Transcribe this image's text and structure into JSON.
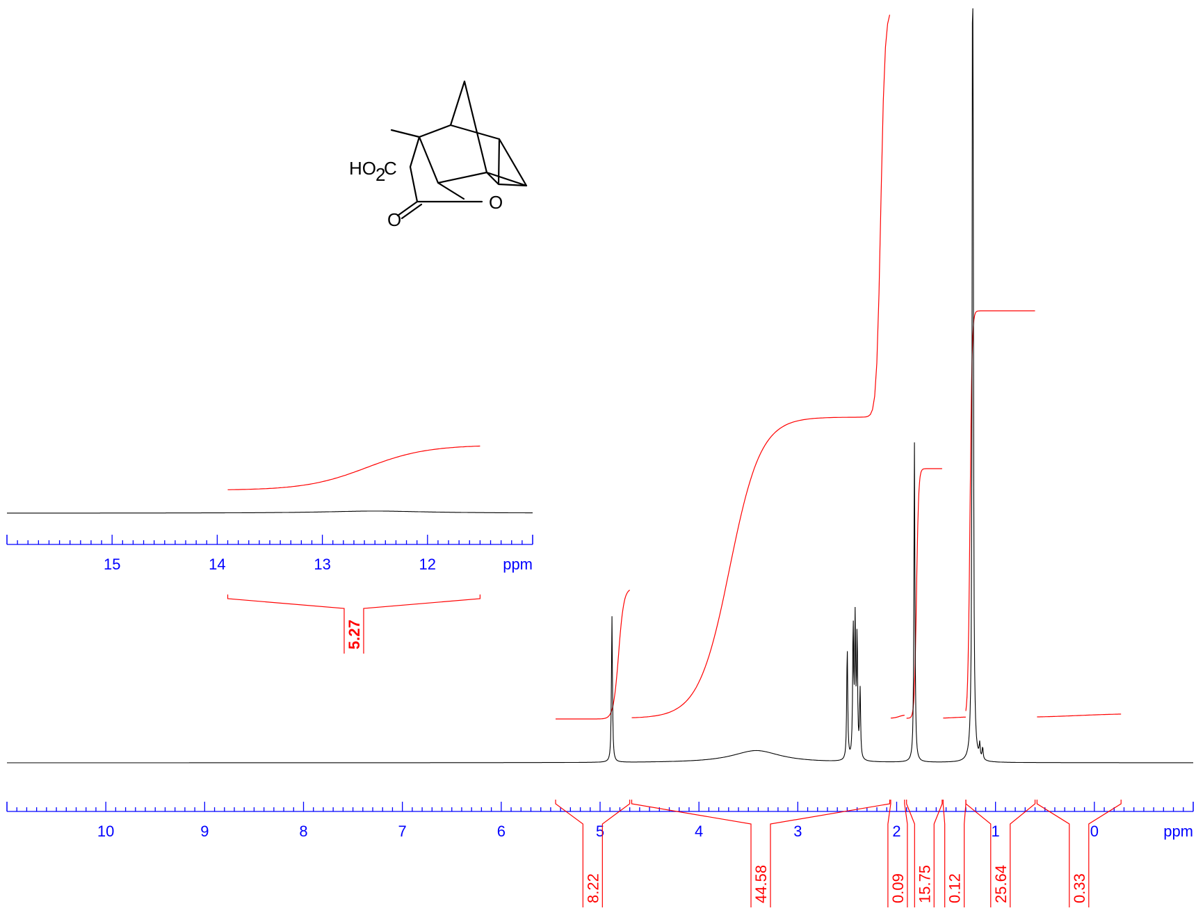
{
  "chart_data": [
    {
      "type": "line",
      "title": "",
      "xlabel": "ppm",
      "ylabel": "",
      "xlim": [
        11.0,
        -1.0
      ],
      "x_reversed": true,
      "grid": false,
      "legend": "none",
      "xticks": [
        10,
        9,
        8,
        7,
        6,
        5,
        4,
        3,
        2,
        1,
        0
      ],
      "xtick_labels": [
        "10",
        "9",
        "8",
        "7",
        "6",
        "5",
        "4",
        "3",
        "2",
        "1",
        "0"
      ],
      "peaks": [
        {
          "ppm": 4.88,
          "height": 0.42
        },
        {
          "ppm": 3.42,
          "height": 0.035,
          "width": 0.3
        },
        {
          "ppm": 2.5,
          "height": 0.33
        },
        {
          "ppm": 2.44,
          "height": 0.38
        },
        {
          "ppm": 2.42,
          "height": 0.38
        },
        {
          "ppm": 2.4,
          "height": 0.35
        },
        {
          "ppm": 2.37,
          "height": 0.2
        },
        {
          "ppm": 1.82,
          "height": 0.92
        },
        {
          "ppm": 1.23,
          "height": 3.0
        },
        {
          "ppm": 1.16,
          "height": 0.04
        },
        {
          "ppm": 1.13,
          "height": 0.035
        }
      ],
      "integrals": [
        {
          "from": 5.45,
          "to": 4.7,
          "value": "8.22"
        },
        {
          "from": 4.68,
          "to": 2.07,
          "value": "44.58"
        },
        {
          "from": 2.06,
          "to": 1.92,
          "value": "0.09"
        },
        {
          "from": 1.9,
          "to": 1.54,
          "value": "15.75"
        },
        {
          "from": 1.53,
          "to": 1.3,
          "value": "0.12"
        },
        {
          "from": 1.3,
          "to": 0.6,
          "value": "25.64"
        },
        {
          "from": 0.58,
          "to": -0.27,
          "value": "0.33"
        }
      ]
    },
    {
      "type": "line",
      "title": "",
      "xlabel": "ppm",
      "ylabel": "",
      "xlim": [
        16.0,
        11.0
      ],
      "x_reversed": true,
      "grid": false,
      "legend": "none",
      "xticks": [
        15,
        14,
        13,
        12
      ],
      "xtick_labels": [
        "15",
        "14",
        "13",
        "12"
      ],
      "peaks": [
        {
          "ppm": 12.5,
          "height": 0.015,
          "width": 0.6
        }
      ],
      "integrals": [
        {
          "from": 13.9,
          "to": 11.5,
          "value": "5.27",
          "bold": true
        }
      ]
    }
  ],
  "structure": {
    "label_ho2c": "HO",
    "label_sub2": "2",
    "label_c": "C",
    "label_o_ring": "O",
    "label_o_carbonyl": "O"
  },
  "colors": {
    "axis": "#0000ff",
    "integral": "#ff0000",
    "spectrum": "#000000"
  }
}
